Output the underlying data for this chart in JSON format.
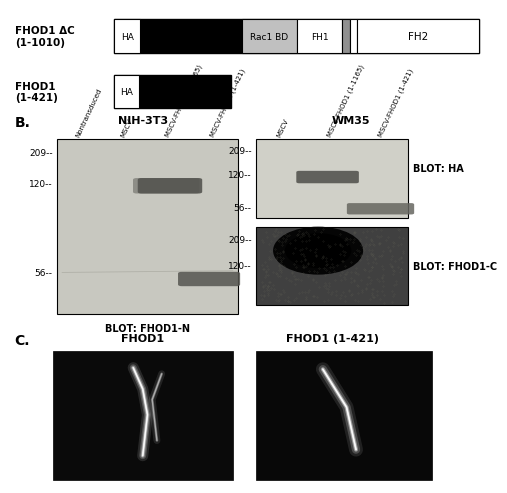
{
  "background_color": "#ffffff",
  "panel_A": {
    "row1_name": "FHOD1 ΔC\n(1-1010)",
    "row2_name": "FHOD1\n(1-421)"
  },
  "panel_B_label": "B.",
  "panel_B_NIH_title": "NIH-3T3",
  "panel_B_WM35_title": "WM35",
  "panel_B_NIH_lanes": [
    "Nontransduced",
    "MSCV",
    "MSCV-FHOD1 (1-1165)",
    "MSCV-FHOD1 (1-421)"
  ],
  "panel_B_WM35_lanes": [
    "MSCV",
    "MSCV-FHOD1 (1-1165)",
    "MSCV-FHOD1 (1-421)"
  ],
  "panel_B_NIH_blot": "BLOT: FHOD1-N",
  "panel_B_WM35_blot_top": "BLOT: HA",
  "panel_B_WM35_blot_bot": "BLOT: FHOD1-C",
  "panel_C_label": "C.",
  "panel_C_title1": "FHOD1",
  "panel_C_title2": "FHOD1 (1-421)"
}
